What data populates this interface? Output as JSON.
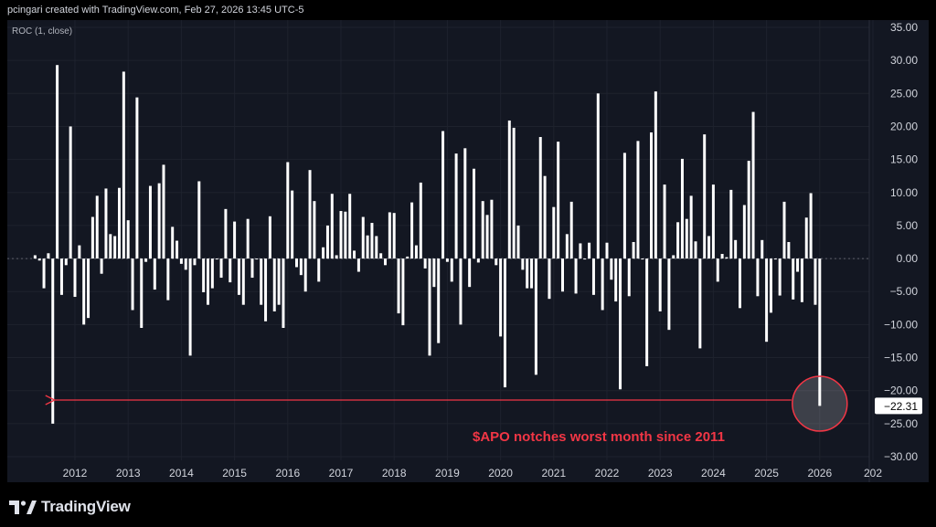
{
  "header": {
    "attribution": "pcingari created with TradingView.com, Feb 27, 2026 13:45 UTC-5"
  },
  "footer": {
    "brand": "TradingView",
    "logo_icon": "tradingview-logo-icon"
  },
  "colors": {
    "background": "#131722",
    "bars": "#ffffff",
    "annotation": "#f23645",
    "axis_text": "#d1d4dc",
    "current_value_label_bg": "#ffffff",
    "current_value_label_text": "#000000"
  },
  "chart_data": {
    "type": "bar",
    "indicator_label": "ROC (1, close)",
    "x_tick_labels": [
      "2012",
      "2013",
      "2014",
      "2015",
      "2016",
      "2017",
      "2018",
      "2019",
      "2020",
      "2021",
      "2022",
      "2023",
      "2024",
      "2025",
      "2026",
      "202"
    ],
    "y_tick_labels": [
      "35.00",
      "30.00",
      "25.00",
      "20.00",
      "15.00",
      "10.00",
      "5.00",
      "0.00",
      "−5.00",
      "−10.00",
      "−15.00",
      "−20.00",
      "−25.00",
      "−30.00"
    ],
    "ylim": [
      -30,
      35
    ],
    "zero_line": "dashed",
    "current_value_label": "−22.31",
    "annotation_text": "$APO notches worst month since 2011",
    "annotation_arrow": "from latest bar back to the 2011 low",
    "highlighted_bar": "latest",
    "series": [
      {
        "x_start": "2011-04",
        "x_end": "2026-02",
        "values": [
          0.5,
          -0.3,
          -4.5,
          0.8,
          -25,
          29.3,
          -5.5,
          -1,
          20,
          -5.8,
          2,
          -10,
          -9,
          6.3,
          9.5,
          -2.3,
          10.6,
          3.7,
          3.4,
          10.7,
          28.3,
          5.8,
          -7.8,
          24.4,
          -10.5,
          -0.5,
          11,
          -4.7,
          11.4,
          14.2,
          -6.3,
          4.8,
          2.7,
          -0.8,
          -1.7,
          -14.7,
          -1,
          11.7,
          -5.1,
          -7,
          -4.5,
          0,
          -2.9,
          7.5,
          -3.6,
          5.6,
          -5.5,
          -7,
          6,
          -2.9,
          0,
          -7,
          -9.5,
          6.4,
          -8,
          -7,
          -10.5,
          14.6,
          10.3,
          -1.3,
          -2.5,
          -5,
          13.4,
          8.7,
          -3.5,
          1.7,
          5,
          9.8,
          0.5,
          7.2,
          7.1,
          9.8,
          1.2,
          -2,
          6.3,
          3.5,
          5.4,
          3.4,
          0.8,
          -1,
          7,
          6.9,
          -8.3,
          -10.1,
          0.3,
          8.5,
          2,
          11.5,
          -1.5,
          -14.7,
          -4.3,
          -12.8,
          19.3,
          -0.5,
          -3.5,
          15.9,
          -10,
          16.7,
          -4.3,
          13.6,
          -0.6,
          8.7,
          6.6,
          8.9,
          -1,
          -11.8,
          -19.5,
          20.9,
          19.8,
          5,
          -1.7,
          -4.5,
          -4.5,
          -17.6,
          18.4,
          12.5,
          -6.1,
          7.8,
          17.7,
          -5,
          3.7,
          8.6,
          -5.3,
          2.3,
          0,
          2.4,
          -5.5,
          25,
          -7.8,
          2.4,
          -3.2,
          -6.5,
          -19.8,
          16,
          -5.7,
          2.5,
          17.8,
          0,
          -16.3,
          19.1,
          25.3,
          -8,
          11.2,
          -10.8,
          0.5,
          5.5,
          15.1,
          6,
          9.5,
          2.6,
          -13.6,
          18.8,
          3.4,
          11.2,
          -3.5,
          0.7,
          0.2,
          10.4,
          2.8,
          -7.5,
          8.1,
          14.8,
          22.2,
          -5.7,
          2.8,
          -12.6,
          -8.2,
          0,
          -5.6,
          8.6,
          2.5,
          -6.2,
          -2,
          -6.6,
          6.2,
          9.9,
          -7,
          -22.31
        ]
      }
    ]
  }
}
